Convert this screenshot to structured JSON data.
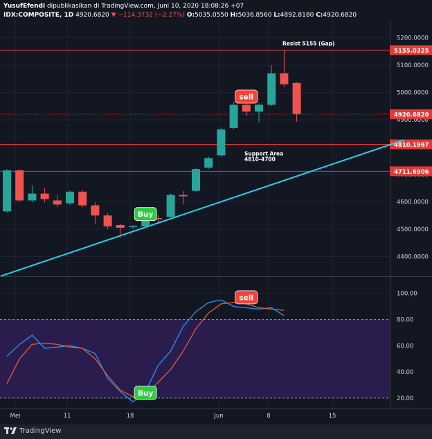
{
  "header": {
    "line1_user": "YusufEfendi",
    "line1_rest": "dipublikasikan di TradingView.com, Juni 10, 2020 18:08:26 +07",
    "symbol": "IDX:COMPOSITE, 1D",
    "last": "4920.6820",
    "change": "−114.3732 (−2.27%)",
    "o_label": "O:",
    "o": "5035.0550",
    "h_label": "H:",
    "h": "5036.8560",
    "l_label": "L:",
    "l": "4892.8180",
    "c_label": "C:",
    "c": "4920.6820"
  },
  "footer": {
    "brand": "TradingView"
  },
  "colors": {
    "bull": "#26a69a",
    "bear": "#ef5350",
    "trend": "#22d3ee",
    "stoch_k": "#2196f3",
    "stoch_d": "#e65a3a",
    "band": "#2a1d4e"
  },
  "chart_data": [
    {
      "type": "candlestick",
      "x_ticks": [
        "Mei",
        "11",
        "18",
        "Jun",
        "8",
        "15"
      ],
      "ylim": [
        4330,
        5265
      ],
      "y_ticks": [
        "5200.0000",
        "5100.0000",
        "5000.0000",
        "4900.0000",
        "4800.0000",
        "4700.0000",
        "4600.0000",
        "4500.0000",
        "4400.0000"
      ],
      "candles": [
        {
          "o": 4565,
          "h": 4720,
          "l": 4560,
          "c": 4715
        },
        {
          "o": 4715,
          "h": 4718,
          "l": 4600,
          "c": 4605
        },
        {
          "o": 4605,
          "h": 4660,
          "l": 4598,
          "c": 4630
        },
        {
          "o": 4630,
          "h": 4650,
          "l": 4598,
          "c": 4610
        },
        {
          "o": 4605,
          "h": 4625,
          "l": 4580,
          "c": 4590
        },
        {
          "o": 4595,
          "h": 4642,
          "l": 4588,
          "c": 4637
        },
        {
          "o": 4637,
          "h": 4643,
          "l": 4580,
          "c": 4587
        },
        {
          "o": 4587,
          "h": 4598,
          "l": 4520,
          "c": 4550
        },
        {
          "o": 4550,
          "h": 4558,
          "l": 4500,
          "c": 4510
        },
        {
          "o": 4515,
          "h": 4520,
          "l": 4468,
          "c": 4505
        },
        {
          "o": 4508,
          "h": 4515,
          "l": 4500,
          "c": 4512
        },
        {
          "o": 4510,
          "h": 4558,
          "l": 4505,
          "c": 4540
        },
        {
          "o": 4540,
          "h": 4550,
          "l": 4525,
          "c": 4538
        },
        {
          "o": 4545,
          "h": 4630,
          "l": 4538,
          "c": 4625
        },
        {
          "o": 4625,
          "h": 4640,
          "l": 4590,
          "c": 4620
        },
        {
          "o": 4640,
          "h": 4725,
          "l": 4635,
          "c": 4720
        },
        {
          "o": 4725,
          "h": 4765,
          "l": 4720,
          "c": 4760
        },
        {
          "o": 4770,
          "h": 4872,
          "l": 4765,
          "c": 4865
        },
        {
          "o": 4870,
          "h": 4965,
          "l": 4865,
          "c": 4955
        },
        {
          "o": 4955,
          "h": 5010,
          "l": 4915,
          "c": 4930
        },
        {
          "o": 4930,
          "h": 4960,
          "l": 4890,
          "c": 4955
        },
        {
          "o": 4955,
          "h": 5100,
          "l": 4950,
          "c": 5070
        },
        {
          "o": 5070,
          "h": 5155,
          "l": 5020,
          "c": 5030
        },
        {
          "o": 5035,
          "h": 5037,
          "l": 4893,
          "c": 4921
        }
      ],
      "levels": [
        {
          "value": 5155.0325,
          "label": "5155.0325",
          "note": "Resist 5155 (Gap)"
        },
        {
          "value": 4920.682,
          "label": "4920.6820",
          "note": ""
        },
        {
          "value": 4810.1967,
          "label": "4810.1967",
          "note": "Support Area"
        },
        {
          "value": 4711.6906,
          "label": "4711.6906",
          "note": ""
        }
      ],
      "support_note_2": "4810-4700",
      "annotations": [
        {
          "text": "Buy",
          "kind": "buy",
          "bar": 11,
          "price": 4555
        },
        {
          "text": "sell",
          "kind": "sell",
          "bar": 19,
          "price": 4985
        }
      ],
      "trendline": [
        {
          "bar": -0.5,
          "price": 4328
        },
        {
          "bar": 31.5,
          "price": 4826
        }
      ]
    },
    {
      "type": "line",
      "ylim": [
        12,
        112
      ],
      "y_ticks": [
        "100.00",
        "80.00",
        "60.00",
        "40.00",
        "20.00"
      ],
      "band": [
        20,
        80
      ],
      "series": [
        {
          "values": [
            52,
            61,
            68,
            58,
            59,
            60,
            58,
            54,
            35,
            25,
            17,
            25,
            45,
            56,
            75,
            86,
            93,
            95,
            90,
            89,
            88,
            89,
            83
          ]
        },
        {
          "values": [
            31,
            50,
            61,
            62,
            61,
            59,
            58,
            50,
            37,
            26,
            21,
            23,
            32,
            42,
            56,
            73,
            85,
            92,
            93,
            92,
            89,
            88,
            87
          ]
        }
      ],
      "annotations": [
        {
          "text": "Buy",
          "kind": "buy",
          "bar": 11,
          "value": 24
        },
        {
          "text": "sell",
          "kind": "sell",
          "bar": 19,
          "value": 97
        }
      ]
    }
  ]
}
